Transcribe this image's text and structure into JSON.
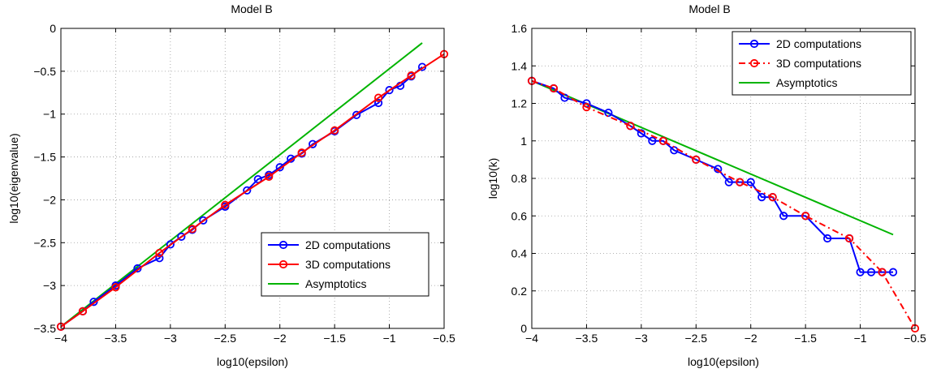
{
  "chart_data": [
    {
      "type": "line",
      "title": "Model B",
      "xlabel": "log10(epsilon)",
      "ylabel": "log10(eigenvalue)",
      "xlim": [
        -4,
        -0.5
      ],
      "ylim": [
        -3.5,
        0
      ],
      "xticks": [
        -4,
        -3.5,
        -3,
        -2.5,
        -2,
        -1.5,
        -1,
        -0.5
      ],
      "xtick_labels": [
        "−4",
        "−3.5",
        "−3",
        "−2.5",
        "−2",
        "−1.5",
        "−1",
        "−0.5"
      ],
      "yticks": [
        -3.5,
        -3,
        -2.5,
        -2,
        -1.5,
        -1,
        -0.5,
        0
      ],
      "ytick_labels": [
        "−3.5",
        "−3",
        "−2.5",
        "−2",
        "−1.5",
        "−1",
        "−0.5",
        "0"
      ],
      "grid": true,
      "legend_position": "bottom-right",
      "series": [
        {
          "name": "2D computations",
          "color": "#0000ff",
          "style": "solid",
          "marker": "circle",
          "x": [
            -4,
            -3.8,
            -3.7,
            -3.5,
            -3.3,
            -3.1,
            -3.0,
            -2.9,
            -2.8,
            -2.7,
            -2.5,
            -2.3,
            -2.2,
            -2.1,
            -2.0,
            -1.9,
            -1.8,
            -1.7,
            -1.5,
            -1.3,
            -1.1,
            -1.0,
            -0.9,
            -0.8,
            -0.7
          ],
          "y": [
            -3.48,
            -3.3,
            -3.19,
            -3.0,
            -2.8,
            -2.68,
            -2.52,
            -2.43,
            -2.35,
            -2.24,
            -2.08,
            -1.89,
            -1.76,
            -1.71,
            -1.62,
            -1.52,
            -1.46,
            -1.35,
            -1.2,
            -1.01,
            -0.87,
            -0.72,
            -0.67,
            -0.56,
            -0.45
          ]
        },
        {
          "name": "3D computations",
          "color": "#ff0000",
          "style": "solid",
          "marker": "circle",
          "x": [
            -4,
            -3.8,
            -3.5,
            -3.1,
            -2.8,
            -2.5,
            -2.1,
            -1.8,
            -1.5,
            -1.1,
            -0.8,
            -0.5
          ],
          "y": [
            -3.48,
            -3.3,
            -3.02,
            -2.62,
            -2.34,
            -2.06,
            -1.73,
            -1.45,
            -1.19,
            -0.81,
            -0.55,
            -0.3
          ]
        },
        {
          "name": "Asymptotics",
          "color": "#00b400",
          "style": "solid",
          "marker": "none",
          "x": [
            -4,
            -0.7
          ],
          "y": [
            -3.48,
            -0.17
          ]
        }
      ]
    },
    {
      "type": "line",
      "title": "Model B",
      "xlabel": "log10(epsilon)",
      "ylabel": "log10(k)",
      "xlim": [
        -4,
        -0.5
      ],
      "ylim": [
        0,
        1.6
      ],
      "xticks": [
        -4,
        -3.5,
        -3,
        -2.5,
        -2,
        -1.5,
        -1,
        -0.5
      ],
      "xtick_labels": [
        "−4",
        "−3.5",
        "−3",
        "−2.5",
        "−2",
        "−1.5",
        "−1",
        "−0.5"
      ],
      "yticks": [
        0,
        0.2,
        0.4,
        0.6,
        0.8,
        1,
        1.2,
        1.4,
        1.6
      ],
      "ytick_labels": [
        "0",
        "0.2",
        "0.4",
        "0.6",
        "0.8",
        "1",
        "1.2",
        "1.4",
        "1.6"
      ],
      "grid": true,
      "legend_position": "top-right",
      "series": [
        {
          "name": "2D computations",
          "color": "#0000ff",
          "style": "solid",
          "marker": "circle",
          "x": [
            -4,
            -3.8,
            -3.7,
            -3.5,
            -3.3,
            -3.1,
            -3.0,
            -2.9,
            -2.8,
            -2.7,
            -2.5,
            -2.3,
            -2.2,
            -2.1,
            -2.0,
            -1.9,
            -1.8,
            -1.7,
            -1.5,
            -1.3,
            -1.1,
            -1.0,
            -0.9,
            -0.8,
            -0.7
          ],
          "y": [
            1.32,
            1.28,
            1.23,
            1.2,
            1.15,
            1.08,
            1.04,
            1.0,
            1.0,
            0.95,
            0.9,
            0.85,
            0.78,
            0.78,
            0.78,
            0.7,
            0.7,
            0.6,
            0.6,
            0.48,
            0.48,
            0.3,
            0.3,
            0.3,
            0.3
          ]
        },
        {
          "name": "3D computations",
          "color": "#ff0000",
          "style": "dashdot",
          "marker": "circle",
          "x": [
            -4,
            -3.8,
            -3.5,
            -3.1,
            -2.8,
            -2.5,
            -2.1,
            -1.8,
            -1.5,
            -1.1,
            -0.8,
            -0.5
          ],
          "y": [
            1.32,
            1.28,
            1.18,
            1.08,
            1.0,
            0.9,
            0.78,
            0.7,
            0.6,
            0.48,
            0.3,
            0.0
          ]
        },
        {
          "name": "Asymptotics",
          "color": "#00b400",
          "style": "solid",
          "marker": "none",
          "x": [
            -4,
            -0.7
          ],
          "y": [
            1.32,
            0.5
          ]
        }
      ]
    }
  ]
}
